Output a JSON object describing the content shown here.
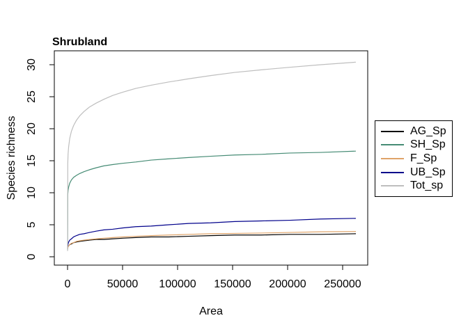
{
  "chart_data": {
    "type": "line",
    "title": "Shrubland",
    "xlabel": "Area",
    "ylabel": "Species richness",
    "x_ticks": [
      0,
      50000,
      100000,
      150000,
      200000,
      250000
    ],
    "y_ticks": [
      0,
      5,
      10,
      15,
      20,
      25,
      30
    ],
    "xlim": [
      0,
      262000
    ],
    "ylim": [
      0,
      30.4
    ],
    "grid": false,
    "legend_position": "right-outside",
    "background": "#ffffff",
    "axis_color": "#000000",
    "x": [
      30,
      200,
      500,
      1000,
      2000,
      3500,
      5500,
      8000,
      11000,
      15000,
      20000,
      26000,
      33000,
      41000,
      50000,
      62000,
      76000,
      92000,
      110000,
      130000,
      152000,
      176000,
      202000,
      230000,
      262000
    ],
    "series": [
      {
        "name": "AG_Sp",
        "color": "#000000",
        "values": [
          1.3,
          1.4,
          1.6,
          1.7,
          1.9,
          2.0,
          2.2,
          2.3,
          2.4,
          2.5,
          2.6,
          2.7,
          2.7,
          2.8,
          2.9,
          3.0,
          3.1,
          3.1,
          3.2,
          3.3,
          3.4,
          3.4,
          3.5,
          3.5,
          3.6
        ]
      },
      {
        "name": "SH_Sp",
        "color": "#458B74",
        "values": [
          1.1,
          9.7,
          10.4,
          10.9,
          11.5,
          12.0,
          12.4,
          12.7,
          13.0,
          13.3,
          13.6,
          13.9,
          14.2,
          14.4,
          14.6,
          14.8,
          15.1,
          15.3,
          15.5,
          15.7,
          15.9,
          16.0,
          16.2,
          16.3,
          16.5
        ]
      },
      {
        "name": "F_Sp",
        "color": "#DFA368",
        "values": [
          1.2,
          1.4,
          1.6,
          1.7,
          1.9,
          2.1,
          2.2,
          2.4,
          2.5,
          2.6,
          2.7,
          2.8,
          2.9,
          3.0,
          3.1,
          3.2,
          3.3,
          3.4,
          3.5,
          3.6,
          3.65,
          3.7,
          3.8,
          3.9,
          3.95
        ]
      },
      {
        "name": "UB_Sp",
        "color": "#00008B",
        "values": [
          1.6,
          1.7,
          2.0,
          2.3,
          2.6,
          2.8,
          3.1,
          3.3,
          3.5,
          3.6,
          3.8,
          4.0,
          4.2,
          4.3,
          4.5,
          4.7,
          4.8,
          5.0,
          5.2,
          5.3,
          5.5,
          5.6,
          5.7,
          5.9,
          6.0
        ]
      },
      {
        "name": "Tot_sp",
        "color": "#BEBEBE",
        "values": [
          0.9,
          14.6,
          16.1,
          17.2,
          18.5,
          19.6,
          20.5,
          21.3,
          22.0,
          22.7,
          23.4,
          24.0,
          24.6,
          25.2,
          25.7,
          26.3,
          26.8,
          27.3,
          27.8,
          28.3,
          28.8,
          29.2,
          29.6,
          30.0,
          30.4
        ]
      }
    ]
  }
}
